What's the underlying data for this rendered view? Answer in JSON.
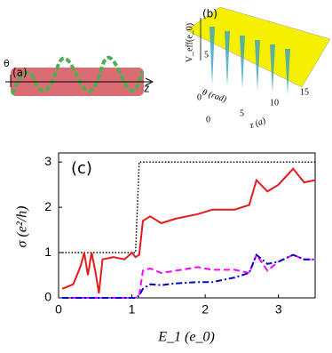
{
  "panel_a": {
    "label": "(a)",
    "theta": "θ",
    "axis": "z"
  },
  "panel_b": {
    "label": "(b)",
    "zlabel": "V_eff(e_0)",
    "ylabel": "θ (rad)",
    "xlabel": "z (a)",
    "yticks": [
      "0",
      "5"
    ],
    "xticks": [
      "0",
      "5",
      "10",
      "15"
    ]
  },
  "chart_data": {
    "type": "line",
    "panel_label": "(c)",
    "x_label": "E_1 (e_0)",
    "y_label": "σ (e²/h)",
    "xlim": [
      0,
      3.5
    ],
    "ylim": [
      0,
      3.2
    ],
    "xticks": [
      0,
      1,
      2,
      3
    ],
    "yticks": [
      0,
      1,
      2,
      3
    ],
    "x": [
      0.05,
      0.2,
      0.3,
      0.35,
      0.4,
      0.45,
      0.5,
      0.55,
      0.6,
      0.75,
      0.9,
      1.0,
      1.05,
      1.1,
      1.15,
      1.25,
      1.4,
      1.6,
      1.9,
      2.1,
      2.4,
      2.6,
      2.7,
      2.85,
      3.0,
      3.2,
      3.35,
      3.5
    ],
    "series": [
      {
        "color": "#000000",
        "linestyle": "dotted",
        "values": [
          1,
          1,
          1,
          1,
          1,
          1,
          1,
          1,
          1,
          1,
          1,
          1,
          1,
          3,
          3,
          3,
          3,
          3,
          3,
          3,
          3,
          3,
          3,
          3,
          3,
          3,
          3,
          3
        ]
      },
      {
        "color": "#e41a1c",
        "linestyle": "solid",
        "values": [
          0.2,
          0.3,
          0.7,
          1.0,
          0.5,
          1.0,
          0.6,
          0.1,
          0.85,
          0.9,
          0.85,
          1.0,
          0.9,
          0.95,
          1.7,
          1.8,
          1.65,
          1.75,
          1.85,
          1.95,
          1.95,
          2.05,
          2.6,
          2.35,
          2.5,
          2.85,
          2.55,
          2.6
        ]
      },
      {
        "color": "#ff00ff",
        "linestyle": "dashed",
        "values": [
          0,
          0,
          0,
          0,
          0,
          0,
          0,
          0,
          0,
          0,
          0,
          0,
          0,
          0.05,
          0.6,
          0.65,
          0.55,
          0.6,
          0.68,
          0.62,
          0.62,
          0.55,
          0.95,
          0.6,
          0.8,
          0.95,
          0.85,
          0.85
        ]
      },
      {
        "color": "#0000cc",
        "linestyle": "dashdot",
        "values": [
          0,
          0,
          0,
          0,
          0,
          0,
          0,
          0,
          0,
          0,
          0,
          0,
          0,
          0.05,
          0.2,
          0.3,
          0.28,
          0.32,
          0.35,
          0.35,
          0.45,
          0.55,
          0.95,
          0.75,
          0.8,
          0.95,
          0.85,
          0.85
        ]
      }
    ]
  }
}
